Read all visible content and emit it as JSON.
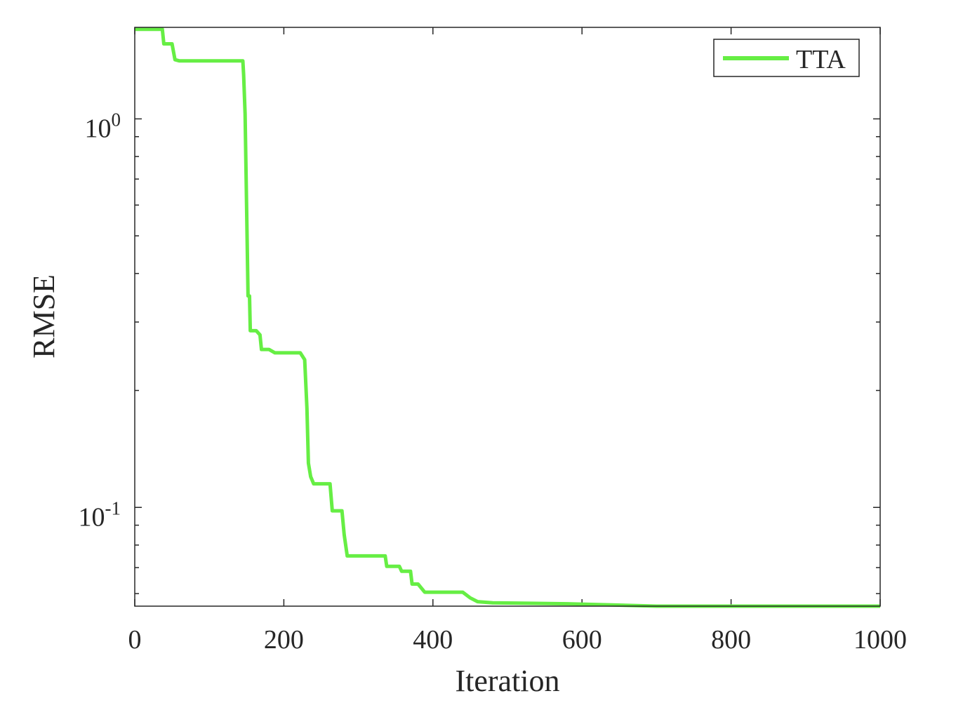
{
  "chart_data": {
    "type": "line",
    "xlabel": "Iteration",
    "ylabel": "RMSE",
    "xlim": [
      0,
      1000
    ],
    "ylim": [
      0.0557,
      1.72
    ],
    "yscale": "log",
    "grid": false,
    "legend_position": "top-right",
    "x_ticks": [
      0,
      200,
      400,
      600,
      800,
      1000
    ],
    "x_tick_labels": [
      "0",
      "200",
      "400",
      "600",
      "800",
      "1000"
    ],
    "y_ticks": [
      {
        "value": 1,
        "base": "10",
        "exponent": "0"
      },
      {
        "value": 0.1,
        "base": "10",
        "exponent": "-1"
      }
    ],
    "y_minor_ticks": [
      0.06,
      0.07,
      0.08,
      0.09,
      0.2,
      0.3,
      0.4,
      0.5,
      0.6,
      0.7,
      0.8,
      0.9
    ],
    "series": [
      {
        "name": "TTA",
        "color": "#66ee44",
        "points": [
          [
            0,
            1.7
          ],
          [
            37,
            1.7
          ],
          [
            39,
            1.56
          ],
          [
            50,
            1.56
          ],
          [
            54,
            1.42
          ],
          [
            60,
            1.41
          ],
          [
            145,
            1.41
          ],
          [
            146,
            1.3
          ],
          [
            148,
            1.03
          ],
          [
            150,
            0.6
          ],
          [
            152,
            0.35
          ],
          [
            154,
            0.35
          ],
          [
            155,
            0.285
          ],
          [
            163,
            0.285
          ],
          [
            168,
            0.278
          ],
          [
            170,
            0.255
          ],
          [
            180,
            0.255
          ],
          [
            188,
            0.25
          ],
          [
            222,
            0.25
          ],
          [
            228,
            0.24
          ],
          [
            231,
            0.18
          ],
          [
            233,
            0.13
          ],
          [
            236,
            0.12
          ],
          [
            240,
            0.115
          ],
          [
            262,
            0.115
          ],
          [
            265,
            0.098
          ],
          [
            278,
            0.098
          ],
          [
            281,
            0.085
          ],
          [
            285,
            0.075
          ],
          [
            336,
            0.075
          ],
          [
            338,
            0.0705
          ],
          [
            355,
            0.0705
          ],
          [
            358,
            0.0685
          ],
          [
            370,
            0.0685
          ],
          [
            372,
            0.0635
          ],
          [
            380,
            0.0635
          ],
          [
            389,
            0.0605
          ],
          [
            440,
            0.0605
          ],
          [
            450,
            0.0585
          ],
          [
            460,
            0.0572
          ],
          [
            480,
            0.0568
          ],
          [
            580,
            0.0565
          ],
          [
            640,
            0.0561
          ],
          [
            700,
            0.0557
          ],
          [
            1000,
            0.0557
          ]
        ]
      }
    ]
  }
}
